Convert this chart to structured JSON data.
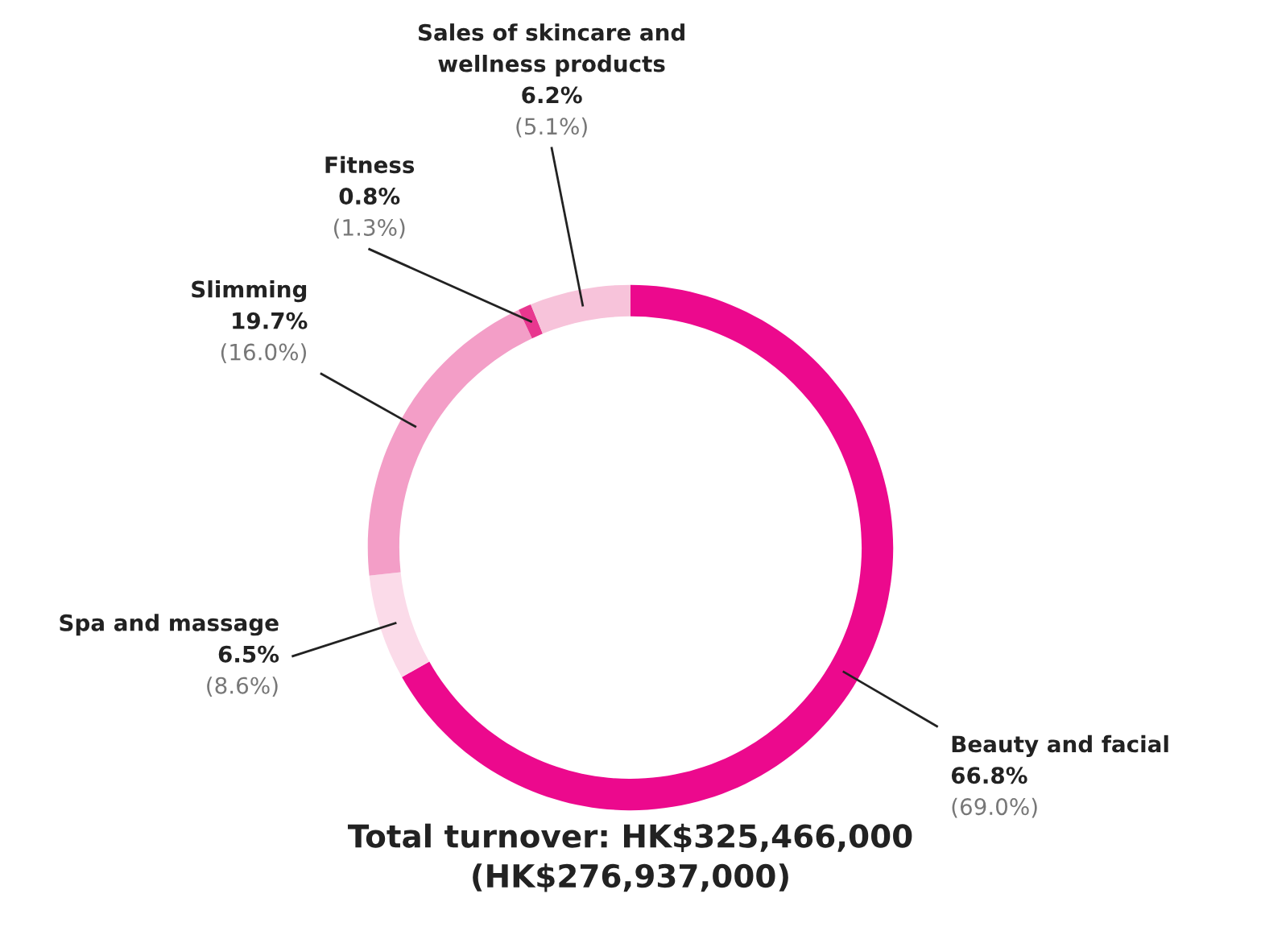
{
  "chart_data": {
    "type": "donut",
    "categories": [
      "Beauty and facial",
      "Spa and massage",
      "Slimming",
      "Fitness",
      "Sales of skincare and wellness products"
    ],
    "values": [
      66.8,
      6.5,
      19.7,
      0.8,
      6.2
    ],
    "value_labels": [
      "66.8%\n(69.0%)",
      "6.5%\n(8.6%)",
      "19.7%\n(16.0%)",
      "0.8%\n(1.3%)",
      "6.2%\n(5.1%)"
    ],
    "colors": [
      "#ec098d",
      "#fbdbe9",
      "#f39ec7",
      "#e8378f",
      "#f7c3da"
    ],
    "title": "Total turnover: HK$325,466,000\n(HK$276,937,000)",
    "legend": false
  }
}
